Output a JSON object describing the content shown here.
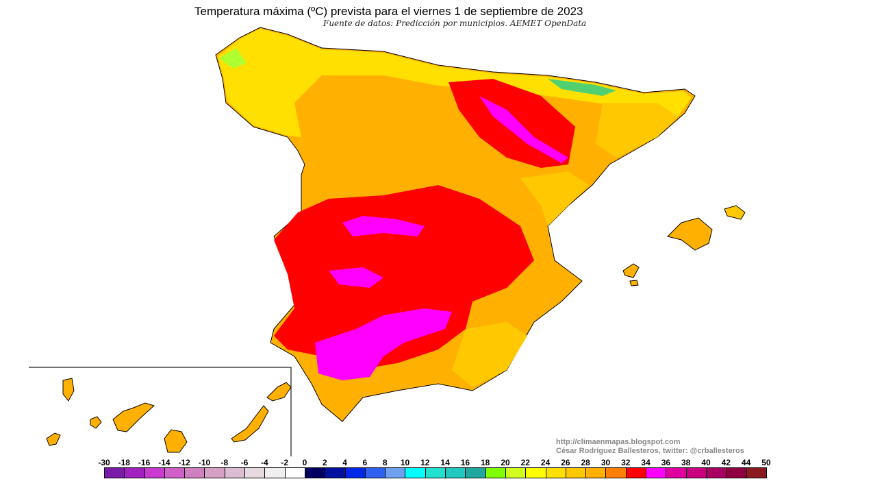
{
  "title": "Temperatura máxima (ºC) prevista para el viernes 1 de septiembre de 2023",
  "subtitle": "Fuente de datos: Predicción por municipios. AEMET OpenData",
  "credits": {
    "url": "http://climaenmapas.blogspot.com",
    "author": "César Rodríguez Ballesteros, twitter: @crballesteros"
  },
  "legend": {
    "labels": [
      "-30",
      "-18",
      "-16",
      "-14",
      "-12",
      "-10",
      "-8",
      "-6",
      "-4",
      "-2",
      "0",
      "2",
      "4",
      "6",
      "8",
      "10",
      "12",
      "14",
      "16",
      "18",
      "20",
      "22",
      "24",
      "26",
      "28",
      "30",
      "32",
      "34",
      "36",
      "38",
      "40",
      "42",
      "44",
      "50"
    ],
    "colors": [
      "#7a1aa8",
      "#a020c0",
      "#c83ad0",
      "#d060c8",
      "#d080c0",
      "#d4a0c4",
      "#dcbcd0",
      "#e8d8e0",
      "#efefef",
      "#ffffff",
      "#000060",
      "#0010a0",
      "#0028e8",
      "#3060f0",
      "#70a0f0",
      "#00ffff",
      "#20e0d0",
      "#20c8c0",
      "#20a8a0",
      "#80ff00",
      "#d0ff20",
      "#ffff00",
      "#ffe000",
      "#ffc800",
      "#ffb000",
      "#ff8000",
      "#ff0000",
      "#ff00ff",
      "#e000a0",
      "#c80080",
      "#a80060",
      "#900040",
      "#8b1a20"
    ]
  }
}
